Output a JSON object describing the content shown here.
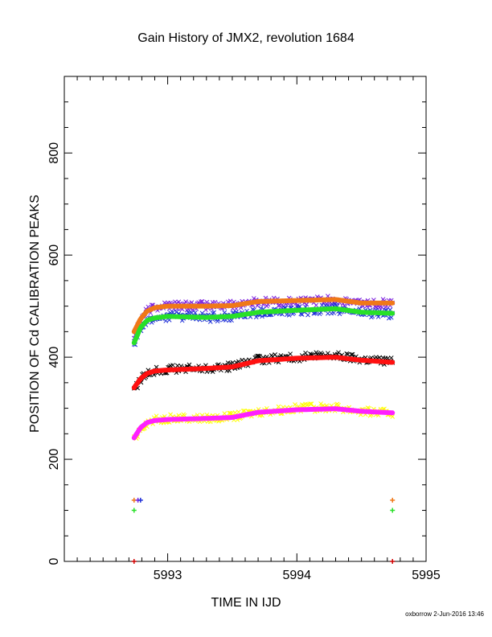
{
  "footer": "oxborrow  2-Jun-2016 13:46",
  "chart_data": {
    "type": "scatter",
    "title": "Gain History of JMX2, revolution 1684",
    "xlabel": "TIME IN IJD",
    "ylabel": "POSITION OF Cd CALIBRATION PEAKS",
    "xlim": [
      5992.2,
      5995.0
    ],
    "ylim": [
      0,
      950
    ],
    "xticks": [
      5993,
      5994,
      5995
    ],
    "xtick_labels": [
      "5993",
      "5994",
      "5995"
    ],
    "xminor_step": 0.1,
    "yticks": [
      0,
      200,
      400,
      600,
      800
    ],
    "ytick_labels": [
      "0",
      "200",
      "400",
      "600",
      "800"
    ],
    "yminor_step": 50,
    "grid": false,
    "legend": "none",
    "x_start": 5992.74,
    "x_end": 5994.74,
    "series": [
      {
        "color": "#7a1fe0",
        "marker": "x",
        "knots_x": [
          5992.74,
          5992.79,
          5992.84,
          5992.9,
          5993.0,
          5993.3,
          5993.5,
          5993.7,
          5994.0,
          5994.3,
          5994.5,
          5994.74
        ],
        "knots_y": [
          440,
          472,
          489,
          498,
          502,
          500,
          502,
          508,
          508,
          512,
          505,
          505
        ],
        "scatter": 9
      },
      {
        "color": "#1f2fd8",
        "marker": "x",
        "knots_x": [
          5992.74,
          5992.79,
          5992.84,
          5992.9,
          5993.0,
          5993.3,
          5993.5,
          5993.7,
          5994.0,
          5994.3,
          5994.5,
          5994.74
        ],
        "knots_y": [
          425,
          455,
          470,
          477,
          480,
          478,
          481,
          487,
          490,
          495,
          487,
          485
        ],
        "scatter": 9
      },
      {
        "color": "#000000",
        "marker": "x",
        "knots_x": [
          5992.74,
          5992.79,
          5992.84,
          5992.9,
          5993.0,
          5993.3,
          5993.5,
          5993.7,
          5994.0,
          5994.3,
          5994.5,
          5994.74
        ],
        "knots_y": [
          333,
          356,
          368,
          374,
          377,
          378,
          382,
          395,
          400,
          403,
          396,
          392
        ],
        "scatter": 8
      },
      {
        "color": "#ffff00",
        "marker": "x",
        "knots_x": [
          5992.74,
          5992.79,
          5992.84,
          5992.9,
          5993.0,
          5993.3,
          5993.5,
          5993.7,
          5994.0,
          5994.3,
          5994.5,
          5994.74
        ],
        "knots_y": [
          237,
          262,
          272,
          277,
          280,
          280,
          283,
          293,
          300,
          302,
          294,
          290
        ],
        "scatter": 8
      },
      {
        "color": "#f07818",
        "marker": "line",
        "knots_x": [
          5992.74,
          5992.79,
          5992.84,
          5992.9,
          5993.0,
          5993.3,
          5993.5,
          5993.7,
          5994.0,
          5994.3,
          5994.5,
          5994.74
        ],
        "knots_y": [
          450,
          475,
          490,
          497,
          500,
          500,
          501,
          509,
          511,
          513,
          506,
          506
        ]
      },
      {
        "color": "#28e028",
        "marker": "line",
        "knots_x": [
          5992.74,
          5992.79,
          5992.84,
          5992.9,
          5993.0,
          5993.3,
          5993.5,
          5993.7,
          5994.0,
          5994.3,
          5994.5,
          5994.74
        ],
        "knots_y": [
          428,
          458,
          472,
          477,
          480,
          478,
          480,
          488,
          492,
          495,
          488,
          486
        ]
      },
      {
        "color": "#ff1010",
        "marker": "line",
        "knots_x": [
          5992.74,
          5992.79,
          5992.84,
          5992.9,
          5993.0,
          5993.3,
          5993.5,
          5993.7,
          5994.0,
          5994.3,
          5994.5,
          5994.74
        ],
        "knots_y": [
          340,
          358,
          368,
          373,
          375,
          378,
          381,
          393,
          398,
          400,
          394,
          390
        ]
      },
      {
        "color": "#ff20ff",
        "marker": "line",
        "knots_x": [
          5992.74,
          5992.79,
          5992.84,
          5992.9,
          5993.0,
          5993.3,
          5993.5,
          5993.7,
          5994.0,
          5994.3,
          5994.5,
          5994.74
        ],
        "knots_y": [
          242,
          262,
          272,
          276,
          278,
          280,
          282,
          292,
          297,
          299,
          294,
          291
        ]
      }
    ],
    "low_markers": [
      {
        "x": 5992.74,
        "y": 120,
        "color": "#f07818",
        "symbol": "+"
      },
      {
        "x": 5992.77,
        "y": 120,
        "color": "#7a1fe0",
        "symbol": "+"
      },
      {
        "x": 5992.79,
        "y": 120,
        "color": "#1f2fd8",
        "symbol": "+"
      },
      {
        "x": 5992.74,
        "y": 100,
        "color": "#28e028",
        "symbol": "+"
      },
      {
        "x": 5994.74,
        "y": 120,
        "color": "#f07818",
        "symbol": "+"
      },
      {
        "x": 5994.74,
        "y": 100,
        "color": "#28e028",
        "symbol": "+"
      },
      {
        "x": 5992.74,
        "y": 0,
        "color": "#d00000",
        "symbol": "+"
      },
      {
        "x": 5994.74,
        "y": 0,
        "color": "#d00000",
        "symbol": "+"
      }
    ]
  }
}
